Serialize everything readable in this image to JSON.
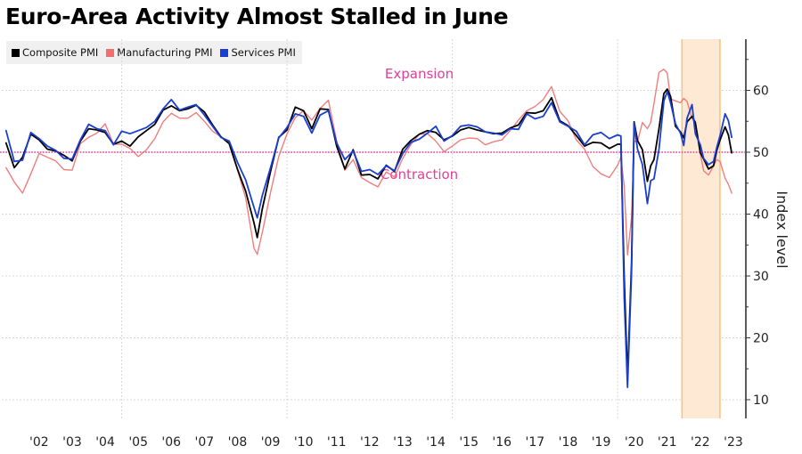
{
  "chart_data": {
    "type": "line",
    "title": "Euro-Area Activity Almost Stalled in June",
    "xlabel": "",
    "ylabel": "Index level",
    "ylim": [
      7,
      68
    ],
    "xlim": [
      2001.5,
      2023.5
    ],
    "y_ticks": [
      10,
      20,
      30,
      40,
      50,
      60
    ],
    "x_tick_labels": [
      "'02",
      "'03",
      "'04",
      "'05",
      "'06",
      "'07",
      "'08",
      "'09",
      "'10",
      "'11",
      "'12",
      "'13",
      "'14",
      "'15",
      "'16",
      "'17",
      "'18",
      "'19",
      "'20",
      "'21",
      "'22",
      "'23"
    ],
    "x_tick_years": [
      2002,
      2003,
      2004,
      2005,
      2006,
      2007,
      2008,
      2009,
      2010,
      2011,
      2012,
      2013,
      2014,
      2015,
      2016,
      2017,
      2018,
      2019,
      2020,
      2021,
      2022,
      2023
    ],
    "grid": true,
    "vertical_grid_years": [
      2005,
      2010,
      2015,
      2020
    ],
    "legend_position": "top-left",
    "reference_line": {
      "value": 50,
      "color": "#e040a0",
      "style": "dotted"
    },
    "annotations": [
      {
        "text": "Expansion",
        "x": 2014.0,
        "y": 63,
        "color": "#e040a0"
      },
      {
        "text": "Contraction",
        "x": 2014.0,
        "y": 46.5,
        "color": "#e040a0"
      }
    ],
    "shaded_region": {
      "x_start": 2022.0,
      "x_end": 2023.5,
      "color": "#fde9d4",
      "border": "#f5c27a"
    },
    "series": [
      {
        "name": "Composite PMI",
        "color": "#000000",
        "x": [
          2001.5,
          2001.75,
          2002.0,
          2002.25,
          2002.5,
          2002.75,
          2003.0,
          2003.25,
          2003.5,
          2003.75,
          2004.0,
          2004.25,
          2004.5,
          2004.75,
          2005.0,
          2005.25,
          2005.5,
          2005.75,
          2006.0,
          2006.25,
          2006.5,
          2006.75,
          2007.0,
          2007.25,
          2007.5,
          2007.75,
          2008.0,
          2008.25,
          2008.5,
          2008.75,
          2009.0,
          2009.1,
          2009.25,
          2009.5,
          2009.75,
          2010.0,
          2010.25,
          2010.5,
          2010.75,
          2011.0,
          2011.25,
          2011.5,
          2011.75,
          2012.0,
          2012.25,
          2012.5,
          2012.75,
          2013.0,
          2013.25,
          2013.5,
          2013.75,
          2014.0,
          2014.25,
          2014.5,
          2014.75,
          2015.0,
          2015.25,
          2015.5,
          2015.75,
          2016.0,
          2016.25,
          2016.5,
          2016.75,
          2017.0,
          2017.25,
          2017.5,
          2017.75,
          2018.0,
          2018.25,
          2018.5,
          2018.75,
          2019.0,
          2019.25,
          2019.5,
          2019.75,
          2020.0,
          2020.1,
          2020.2,
          2020.3,
          2020.42,
          2020.5,
          2020.6,
          2020.75,
          2020.9,
          2021.0,
          2021.1,
          2021.25,
          2021.4,
          2021.5,
          2021.6,
          2021.75,
          2021.9,
          2022.0,
          2022.1,
          2022.25,
          2022.35,
          2022.5,
          2022.6,
          2022.75,
          2022.9,
          2023.0,
          2023.1,
          2023.25,
          2023.35,
          2023.45
        ],
        "values": [
          51.5,
          47.5,
          49.2,
          52.9,
          52.0,
          50.5,
          50.2,
          49.5,
          48.6,
          51.8,
          53.8,
          53.6,
          53.2,
          51.3,
          51.8,
          51.0,
          52.5,
          53.5,
          54.5,
          56.8,
          57.5,
          56.7,
          57.0,
          57.6,
          56.5,
          54.4,
          52.5,
          51.4,
          47.3,
          43.7,
          38.6,
          36.2,
          40.8,
          46.9,
          52.4,
          53.6,
          57.3,
          56.7,
          53.8,
          57.0,
          56.9,
          51.0,
          47.3,
          50.4,
          46.3,
          46.4,
          45.7,
          47.9,
          46.9,
          50.5,
          51.9,
          52.9,
          53.5,
          53.2,
          52.0,
          52.6,
          53.6,
          54.0,
          53.6,
          53.3,
          53.0,
          53.1,
          53.9,
          54.4,
          56.4,
          56.3,
          56.7,
          58.8,
          55.1,
          54.3,
          52.7,
          51.0,
          51.6,
          51.5,
          50.6,
          51.3,
          51.3,
          29.7,
          13.6,
          31.9,
          54.9,
          51.9,
          50.4,
          45.3,
          47.8,
          48.8,
          53.8,
          59.5,
          60.2,
          59.0,
          54.2,
          53.3,
          52.3,
          54.9,
          55.8,
          54.8,
          49.9,
          48.9,
          47.3,
          47.8,
          50.3,
          52.0,
          54.1,
          52.8,
          49.9
        ]
      },
      {
        "name": "Manufacturing PMI",
        "color": "#f07070",
        "x": [
          2001.5,
          2001.75,
          2002.0,
          2002.25,
          2002.5,
          2002.75,
          2003.0,
          2003.25,
          2003.5,
          2003.75,
          2004.0,
          2004.25,
          2004.5,
          2004.75,
          2005.0,
          2005.25,
          2005.5,
          2005.75,
          2006.0,
          2006.25,
          2006.5,
          2006.75,
          2007.0,
          2007.25,
          2007.5,
          2007.75,
          2008.0,
          2008.25,
          2008.5,
          2008.75,
          2009.0,
          2009.1,
          2009.25,
          2009.5,
          2009.75,
          2010.0,
          2010.25,
          2010.5,
          2010.75,
          2011.0,
          2011.25,
          2011.5,
          2011.75,
          2012.0,
          2012.25,
          2012.5,
          2012.75,
          2013.0,
          2013.25,
          2013.5,
          2013.75,
          2014.0,
          2014.25,
          2014.5,
          2014.75,
          2015.0,
          2015.25,
          2015.5,
          2015.75,
          2016.0,
          2016.25,
          2016.5,
          2016.75,
          2017.0,
          2017.25,
          2017.5,
          2017.75,
          2018.0,
          2018.25,
          2018.5,
          2018.75,
          2019.0,
          2019.25,
          2019.5,
          2019.75,
          2020.0,
          2020.1,
          2020.2,
          2020.3,
          2020.42,
          2020.5,
          2020.6,
          2020.75,
          2020.9,
          2021.0,
          2021.1,
          2021.25,
          2021.4,
          2021.5,
          2021.6,
          2021.75,
          2021.9,
          2022.0,
          2022.1,
          2022.25,
          2022.35,
          2022.5,
          2022.6,
          2022.75,
          2022.9,
          2023.0,
          2023.1,
          2023.25,
          2023.35,
          2023.45
        ],
        "values": [
          47.5,
          45.2,
          43.4,
          46.5,
          49.8,
          49.2,
          48.6,
          47.2,
          47.1,
          51.4,
          52.4,
          53.1,
          54.6,
          51.3,
          51.3,
          50.6,
          49.3,
          50.4,
          52.2,
          54.9,
          56.3,
          55.5,
          55.5,
          56.4,
          55.0,
          53.4,
          52.5,
          51.5,
          47.2,
          42.6,
          34.5,
          33.5,
          37.0,
          43.5,
          49.3,
          53.0,
          55.6,
          56.7,
          55.2,
          57.1,
          58.4,
          51.8,
          47.1,
          48.8,
          45.9,
          45.1,
          44.4,
          46.8,
          46.0,
          49.0,
          51.3,
          52.9,
          53.0,
          51.8,
          50.1,
          51.0,
          52.0,
          52.3,
          52.2,
          51.2,
          51.7,
          52.0,
          53.5,
          55.2,
          56.7,
          57.4,
          58.5,
          60.6,
          56.6,
          55.1,
          52.0,
          50.5,
          47.7,
          46.5,
          45.9,
          47.9,
          49.2,
          44.5,
          33.4,
          39.4,
          51.8,
          51.7,
          54.8,
          53.8,
          54.8,
          57.9,
          62.9,
          63.4,
          62.8,
          58.6,
          58.3,
          58.0,
          58.7,
          58.2,
          55.5,
          54.6,
          49.8,
          47.0,
          46.3,
          47.8,
          48.8,
          48.5,
          45.8,
          44.8,
          43.4
        ]
      },
      {
        "name": "Services PMI",
        "color": "#1a3fd0",
        "x": [
          2001.5,
          2001.75,
          2002.0,
          2002.25,
          2002.5,
          2002.75,
          2003.0,
          2003.25,
          2003.5,
          2003.75,
          2004.0,
          2004.25,
          2004.5,
          2004.75,
          2005.0,
          2005.25,
          2005.5,
          2005.75,
          2006.0,
          2006.25,
          2006.5,
          2006.75,
          2007.0,
          2007.25,
          2007.5,
          2007.75,
          2008.0,
          2008.25,
          2008.5,
          2008.75,
          2009.0,
          2009.1,
          2009.25,
          2009.5,
          2009.75,
          2010.0,
          2010.25,
          2010.5,
          2010.75,
          2011.0,
          2011.25,
          2011.5,
          2011.75,
          2012.0,
          2012.25,
          2012.5,
          2012.75,
          2013.0,
          2013.25,
          2013.5,
          2013.75,
          2014.0,
          2014.25,
          2014.5,
          2014.75,
          2015.0,
          2015.25,
          2015.5,
          2015.75,
          2016.0,
          2016.25,
          2016.5,
          2016.75,
          2017.0,
          2017.25,
          2017.5,
          2017.75,
          2018.0,
          2018.25,
          2018.5,
          2018.75,
          2019.0,
          2019.25,
          2019.5,
          2019.75,
          2020.0,
          2020.1,
          2020.2,
          2020.3,
          2020.42,
          2020.5,
          2020.6,
          2020.75,
          2020.9,
          2021.0,
          2021.1,
          2021.25,
          2021.4,
          2021.5,
          2021.6,
          2021.75,
          2021.9,
          2022.0,
          2022.1,
          2022.25,
          2022.35,
          2022.5,
          2022.6,
          2022.75,
          2022.9,
          2023.0,
          2023.1,
          2023.25,
          2023.35,
          2023.45
        ],
        "values": [
          53.5,
          48.5,
          48.7,
          53.2,
          52.2,
          51.0,
          50.3,
          49.0,
          48.9,
          52.0,
          54.5,
          53.8,
          53.5,
          51.2,
          53.4,
          53.0,
          53.5,
          54.0,
          55.0,
          57.0,
          58.5,
          56.8,
          57.3,
          57.7,
          56.0,
          54.2,
          52.4,
          51.8,
          48.4,
          45.5,
          41.1,
          39.4,
          43.0,
          47.5,
          52.3,
          54.0,
          56.2,
          55.8,
          53.1,
          56.0,
          56.7,
          51.5,
          48.8,
          50.2,
          46.9,
          47.2,
          46.4,
          47.8,
          47.0,
          49.8,
          51.6,
          52.1,
          53.1,
          54.2,
          51.8,
          52.7,
          54.2,
          54.4,
          54.1,
          53.3,
          53.1,
          52.8,
          53.8,
          53.7,
          56.2,
          55.4,
          55.8,
          58.0,
          54.9,
          54.2,
          53.4,
          51.2,
          52.8,
          53.2,
          52.2,
          52.8,
          52.6,
          26.4,
          12.0,
          30.5,
          54.7,
          50.5,
          48.0,
          41.7,
          45.4,
          45.7,
          50.5,
          58.3,
          59.8,
          58.0,
          54.6,
          53.1,
          51.1,
          55.5,
          57.7,
          53.0,
          51.2,
          49.0,
          48.0,
          48.5,
          50.8,
          52.7,
          56.2,
          55.1,
          52.4
        ]
      }
    ]
  }
}
